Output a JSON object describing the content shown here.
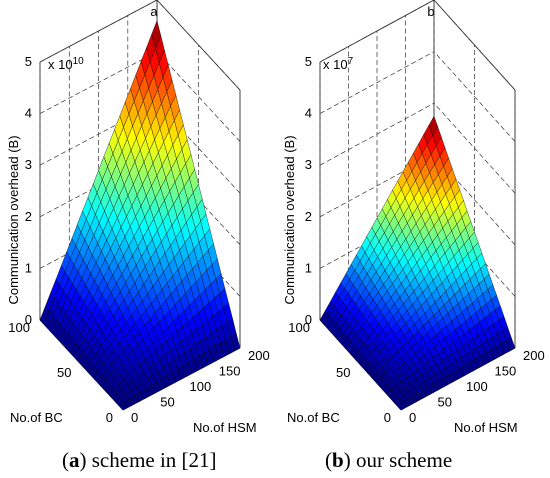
{
  "chart_data": [
    {
      "type": "surface3d",
      "title": "a",
      "exponent_label": "x 10",
      "exponent_power": "10",
      "zlabel": "Communication overhead (B)",
      "xlabel": "No.of HSM",
      "ylabel": "No.of BC",
      "xlim": [
        0,
        200
      ],
      "ylim": [
        0,
        100
      ],
      "zlim": [
        0,
        5
      ],
      "xticks": [
        "0",
        "50",
        "100",
        "150",
        "200"
      ],
      "yticks": [
        "0",
        "50",
        "100"
      ],
      "zticks": [
        "0",
        "1",
        "2",
        "3",
        "4",
        "5"
      ],
      "z_max": 4.6,
      "z_model": "proportional to HSM × BC",
      "colormap": "jet",
      "grid": true,
      "caption_letter": "a",
      "caption_text": "scheme in [21]"
    },
    {
      "type": "surface3d",
      "title": "b",
      "exponent_label": "x 10",
      "exponent_power": "7",
      "zlabel": "Communication overhead (B)",
      "xlabel": "No.of HSM",
      "ylabel": "No.of BC",
      "xlim": [
        0,
        200
      ],
      "ylim": [
        0,
        100
      ],
      "zlim": [
        0,
        5
      ],
      "xticks": [
        "0",
        "50",
        "100",
        "150",
        "200"
      ],
      "yticks": [
        "0",
        "50",
        "100"
      ],
      "zticks": [
        "0",
        "1",
        "2",
        "3",
        "4",
        "5"
      ],
      "z_max": 2.75,
      "z_model": "proportional to HSM × BC",
      "colormap": "jet",
      "grid": true,
      "caption_letter": "b",
      "caption_text": "our scheme"
    }
  ]
}
